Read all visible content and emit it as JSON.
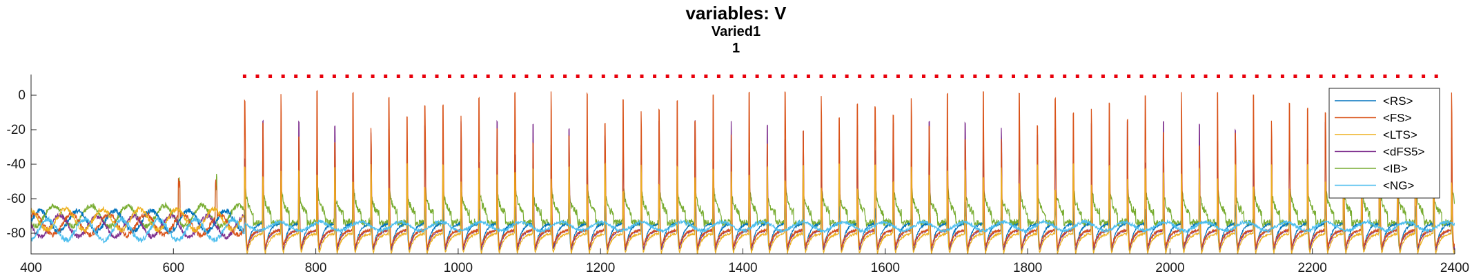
{
  "chart_data": {
    "type": "line",
    "title": "variables: V",
    "subtitle": "Varied1",
    "subtitle2": "1",
    "xlabel": "",
    "ylabel": "",
    "xlim": [
      400,
      2400
    ],
    "ylim": [
      -92,
      12
    ],
    "xticks": [
      400,
      600,
      800,
      1000,
      1200,
      1400,
      1600,
      1800,
      2000,
      2200,
      2400
    ],
    "yticks": [
      0,
      -20,
      -40,
      -60,
      -80
    ],
    "xtick_labels": [
      "400",
      "600",
      "800",
      "1000",
      "1200",
      "1400",
      "1600",
      "1800",
      "2000",
      "2200",
      "2400"
    ],
    "ytick_labels": [
      "0",
      "-20",
      "-40",
      "-60",
      "-80"
    ],
    "legend_position": "top-right",
    "stimulus_onset": 700,
    "gamma_period_ms": 25.3,
    "marker_row": {
      "y": 11,
      "color": "#e8000b",
      "start": 700,
      "end": 2380,
      "spacing": 18
    },
    "series": [
      {
        "name": "<RS>",
        "color": "#0072bd",
        "baseline": -74,
        "trough": -90,
        "peak": -62,
        "pre_baseline": -73
      },
      {
        "name": "<FS>",
        "color": "#d95319",
        "baseline": -78,
        "trough": -88,
        "peak": 2,
        "pre_baseline": -75
      },
      {
        "name": "<LTS>",
        "color": "#edb120",
        "baseline": -80,
        "trough": -92,
        "peak": -40,
        "pre_baseline": -72
      },
      {
        "name": "<dFS5>",
        "color": "#7e2f8e",
        "baseline": -78,
        "trough": -90,
        "peak": -15,
        "pre_baseline": -76
      },
      {
        "name": "<IB>",
        "color": "#77ac30",
        "baseline": -68,
        "trough": -80,
        "peak": -40,
        "pre_baseline": -70
      },
      {
        "name": "<NG>",
        "color": "#4dbeee",
        "baseline": -76,
        "trough": -80,
        "peak": -72,
        "pre_baseline": -78
      }
    ]
  }
}
